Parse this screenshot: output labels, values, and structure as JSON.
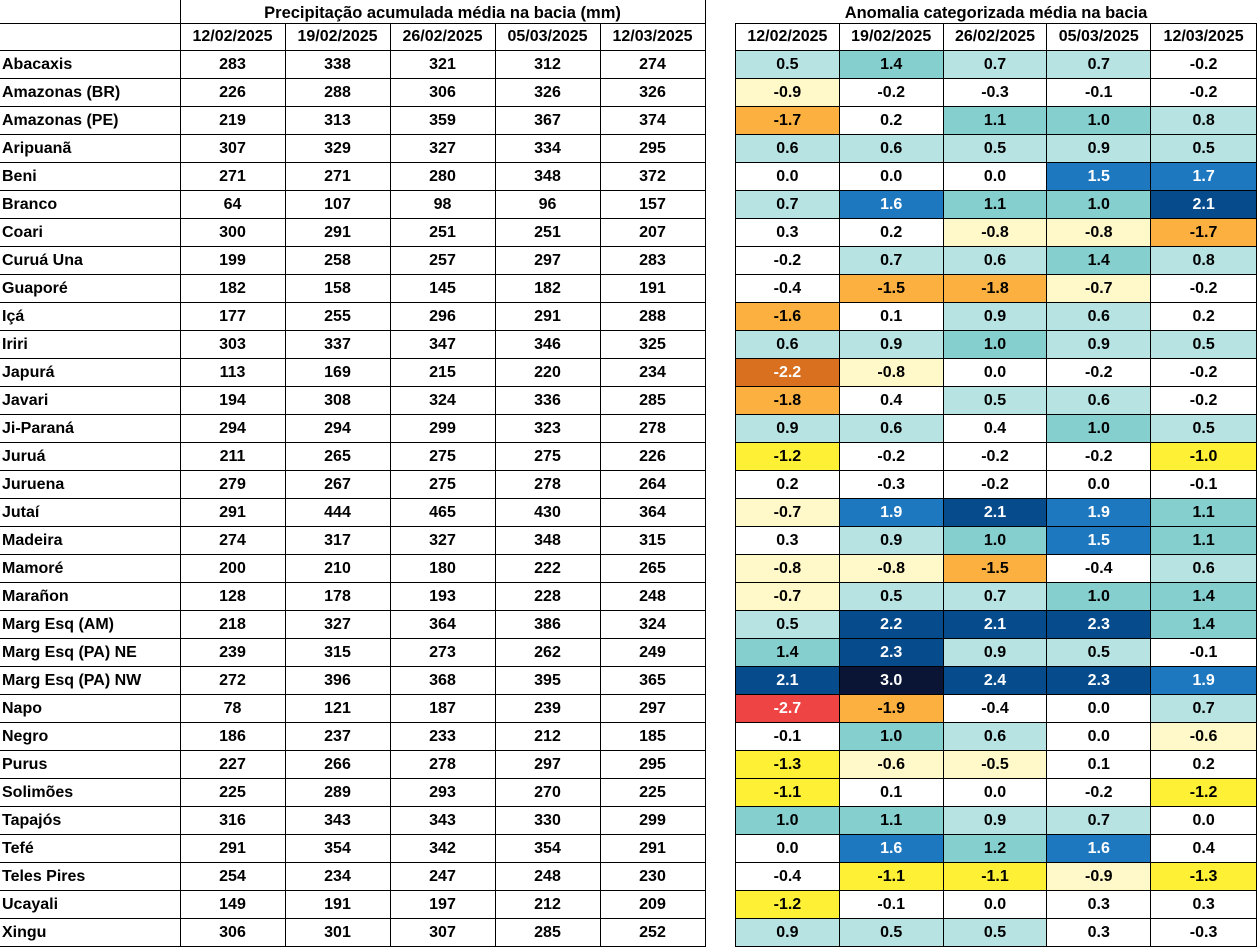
{
  "left_title": "Precipitação acumulada média na bacia (mm)",
  "right_title": "Anomalia categorizada média na bacia",
  "dates": [
    "12/02/2025",
    "19/02/2025",
    "26/02/2025",
    "05/03/2025",
    "12/03/2025"
  ],
  "colors": {
    "c_m27": "#ef4444",
    "c_m22": "#d97020",
    "c_m19_15": "#fbb040",
    "c_m14_10": "#fef035",
    "c_m09_05": "#fff8c8",
    "c_neutral": "#ffffff",
    "c_05_09": "#b8e3e3",
    "c_10_14": "#86cfcf",
    "c_15_19": "#1e78c0",
    "c_20_24": "#064c8c",
    "c_30": "#0a1535"
  },
  "rows": [
    {
      "name": "Abacaxis",
      "precip": [
        "283",
        "338",
        "321",
        "312",
        "274"
      ],
      "anom": [
        "0.5",
        "1.4",
        "0.7",
        "0.7",
        "-0.2"
      ]
    },
    {
      "name": "Amazonas (BR)",
      "precip": [
        "226",
        "288",
        "306",
        "326",
        "326"
      ],
      "anom": [
        "-0.9",
        "-0.2",
        "-0.3",
        "-0.1",
        "-0.2"
      ]
    },
    {
      "name": "Amazonas (PE)",
      "precip": [
        "219",
        "313",
        "359",
        "367",
        "374"
      ],
      "anom": [
        "-1.7",
        "0.2",
        "1.1",
        "1.0",
        "0.8"
      ]
    },
    {
      "name": "Aripuanã",
      "precip": [
        "307",
        "329",
        "327",
        "334",
        "295"
      ],
      "anom": [
        "0.6",
        "0.6",
        "0.5",
        "0.9",
        "0.5"
      ]
    },
    {
      "name": "Beni",
      "precip": [
        "271",
        "271",
        "280",
        "348",
        "372"
      ],
      "anom": [
        "0.0",
        "0.0",
        "0.0",
        "1.5",
        "1.7"
      ]
    },
    {
      "name": "Branco",
      "precip": [
        "64",
        "107",
        "98",
        "96",
        "157"
      ],
      "anom": [
        "0.7",
        "1.6",
        "1.1",
        "1.0",
        "2.1"
      ]
    },
    {
      "name": "Coari",
      "precip": [
        "300",
        "291",
        "251",
        "251",
        "207"
      ],
      "anom": [
        "0.3",
        "0.2",
        "-0.8",
        "-0.8",
        "-1.7"
      ]
    },
    {
      "name": "Curuá Una",
      "precip": [
        "199",
        "258",
        "257",
        "297",
        "283"
      ],
      "anom": [
        "-0.2",
        "0.7",
        "0.6",
        "1.4",
        "0.8"
      ]
    },
    {
      "name": "Guaporé",
      "precip": [
        "182",
        "158",
        "145",
        "182",
        "191"
      ],
      "anom": [
        "-0.4",
        "-1.5",
        "-1.8",
        "-0.7",
        "-0.2"
      ]
    },
    {
      "name": "Içá",
      "precip": [
        "177",
        "255",
        "296",
        "291",
        "288"
      ],
      "anom": [
        "-1.6",
        "0.1",
        "0.9",
        "0.6",
        "0.2"
      ]
    },
    {
      "name": "Iriri",
      "precip": [
        "303",
        "337",
        "347",
        "346",
        "325"
      ],
      "anom": [
        "0.6",
        "0.9",
        "1.0",
        "0.9",
        "0.5"
      ]
    },
    {
      "name": "Japurá",
      "precip": [
        "113",
        "169",
        "215",
        "220",
        "234"
      ],
      "anom": [
        "-2.2",
        "-0.8",
        "0.0",
        "-0.2",
        "-0.2"
      ]
    },
    {
      "name": "Javari",
      "precip": [
        "194",
        "308",
        "324",
        "336",
        "285"
      ],
      "anom": [
        "-1.8",
        "0.4",
        "0.5",
        "0.6",
        "-0.2"
      ]
    },
    {
      "name": "Ji-Paraná",
      "precip": [
        "294",
        "294",
        "299",
        "323",
        "278"
      ],
      "anom": [
        "0.9",
        "0.6",
        "0.4",
        "1.0",
        "0.5"
      ]
    },
    {
      "name": "Juruá",
      "precip": [
        "211",
        "265",
        "275",
        "275",
        "226"
      ],
      "anom": [
        "-1.2",
        "-0.2",
        "-0.2",
        "-0.2",
        "-1.0"
      ]
    },
    {
      "name": "Juruena",
      "precip": [
        "279",
        "267",
        "275",
        "278",
        "264"
      ],
      "anom": [
        "0.2",
        "-0.3",
        "-0.2",
        "0.0",
        "-0.1"
      ]
    },
    {
      "name": "Jutaí",
      "precip": [
        "291",
        "444",
        "465",
        "430",
        "364"
      ],
      "anom": [
        "-0.7",
        "1.9",
        "2.1",
        "1.9",
        "1.1"
      ]
    },
    {
      "name": "Madeira",
      "precip": [
        "274",
        "317",
        "327",
        "348",
        "315"
      ],
      "anom": [
        "0.3",
        "0.9",
        "1.0",
        "1.5",
        "1.1"
      ]
    },
    {
      "name": "Mamoré",
      "precip": [
        "200",
        "210",
        "180",
        "222",
        "265"
      ],
      "anom": [
        "-0.8",
        "-0.8",
        "-1.5",
        "-0.4",
        "0.6"
      ]
    },
    {
      "name": "Marañon",
      "precip": [
        "128",
        "178",
        "193",
        "228",
        "248"
      ],
      "anom": [
        "-0.7",
        "0.5",
        "0.7",
        "1.0",
        "1.4"
      ]
    },
    {
      "name": "Marg Esq (AM)",
      "precip": [
        "218",
        "327",
        "364",
        "386",
        "324"
      ],
      "anom": [
        "0.5",
        "2.2",
        "2.1",
        "2.3",
        "1.4"
      ]
    },
    {
      "name": "Marg Esq (PA) NE",
      "precip": [
        "239",
        "315",
        "273",
        "262",
        "249"
      ],
      "anom": [
        "1.4",
        "2.3",
        "0.9",
        "0.5",
        "-0.1"
      ]
    },
    {
      "name": "Marg Esq (PA) NW",
      "precip": [
        "272",
        "396",
        "368",
        "395",
        "365"
      ],
      "anom": [
        "2.1",
        "3.0",
        "2.4",
        "2.3",
        "1.9"
      ]
    },
    {
      "name": "Napo",
      "precip": [
        "78",
        "121",
        "187",
        "239",
        "297"
      ],
      "anom": [
        "-2.7",
        "-1.9",
        "-0.4",
        "0.0",
        "0.7"
      ]
    },
    {
      "name": "Negro",
      "precip": [
        "186",
        "237",
        "233",
        "212",
        "185"
      ],
      "anom": [
        "-0.1",
        "1.0",
        "0.6",
        "0.0",
        "-0.6"
      ]
    },
    {
      "name": "Purus",
      "precip": [
        "227",
        "266",
        "278",
        "297",
        "295"
      ],
      "anom": [
        "-1.3",
        "-0.6",
        "-0.5",
        "0.1",
        "0.2"
      ]
    },
    {
      "name": "Solimões",
      "precip": [
        "225",
        "289",
        "293",
        "270",
        "225"
      ],
      "anom": [
        "-1.1",
        "0.1",
        "0.0",
        "-0.2",
        "-1.2"
      ]
    },
    {
      "name": "Tapajós",
      "precip": [
        "316",
        "343",
        "343",
        "330",
        "299"
      ],
      "anom": [
        "1.0",
        "1.1",
        "0.9",
        "0.7",
        "0.0"
      ]
    },
    {
      "name": "Tefé",
      "precip": [
        "291",
        "354",
        "342",
        "354",
        "291"
      ],
      "anom": [
        "0.0",
        "1.6",
        "1.2",
        "1.6",
        "0.4"
      ]
    },
    {
      "name": "Teles Pires",
      "precip": [
        "254",
        "234",
        "247",
        "248",
        "230"
      ],
      "anom": [
        "-0.4",
        "-1.1",
        "-1.1",
        "-0.9",
        "-1.3"
      ]
    },
    {
      "name": "Ucayali",
      "precip": [
        "149",
        "191",
        "197",
        "212",
        "209"
      ],
      "anom": [
        "-1.2",
        "-0.1",
        "0.0",
        "0.3",
        "0.3"
      ]
    },
    {
      "name": "Xingu",
      "precip": [
        "306",
        "301",
        "307",
        "285",
        "252"
      ],
      "anom": [
        "0.9",
        "0.5",
        "0.5",
        "0.3",
        "-0.3"
      ]
    }
  ]
}
